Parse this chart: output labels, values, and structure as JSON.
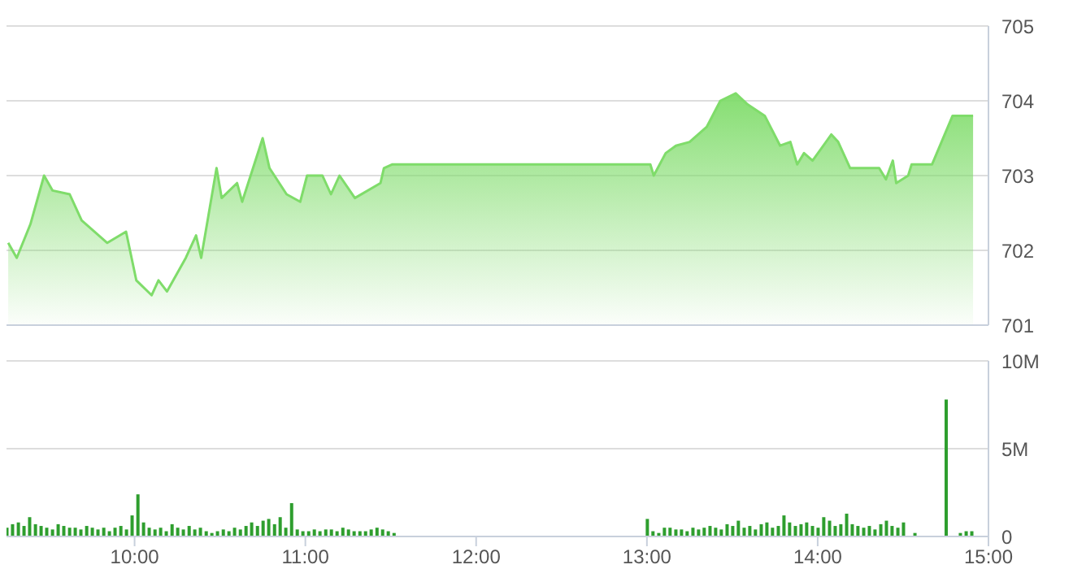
{
  "chart_data": [
    {
      "type": "area",
      "x": [
        9.26,
        9.31,
        9.39,
        9.47,
        9.52,
        9.62,
        9.69,
        9.84,
        9.95,
        10.01,
        10.1,
        10.14,
        10.19,
        10.3,
        10.36,
        10.39,
        10.48,
        10.51,
        10.6,
        10.63,
        10.75,
        10.79,
        10.89,
        10.97,
        11.01,
        11.1,
        11.15,
        11.2,
        11.29,
        11.44,
        11.46,
        11.51,
        13.0,
        13.02,
        13.04,
        13.11,
        13.17,
        13.25,
        13.35,
        13.43,
        13.52,
        13.59,
        13.69,
        13.78,
        13.84,
        13.88,
        13.92,
        13.97,
        14.08,
        14.12,
        14.19,
        14.26,
        14.36,
        14.4,
        14.44,
        14.46,
        14.53,
        14.55,
        14.67,
        14.79,
        14.91
      ],
      "series": [
        {
          "color": "#7fdc6a",
          "values": [
            702.1,
            701.9,
            702.35,
            703.0,
            702.8,
            702.75,
            702.4,
            702.1,
            702.25,
            701.6,
            701.4,
            701.6,
            701.45,
            701.9,
            702.2,
            701.9,
            703.1,
            702.7,
            702.9,
            702.65,
            703.5,
            703.1,
            702.75,
            702.65,
            703.0,
            703.0,
            702.75,
            703.0,
            702.7,
            702.9,
            703.1,
            703.15,
            703.15,
            703.15,
            703.0,
            703.3,
            703.4,
            703.45,
            703.65,
            704.0,
            704.1,
            703.95,
            703.8,
            703.4,
            703.45,
            703.15,
            703.3,
            703.2,
            703.55,
            703.45,
            703.1,
            703.1,
            703.1,
            702.95,
            703.2,
            702.9,
            703.0,
            703.15,
            703.15,
            703.8,
            703.8
          ]
        }
      ],
      "xlim": [
        9.25,
        15
      ],
      "ylim": [
        701,
        705
      ],
      "yticks": [
        701,
        702,
        703,
        704,
        705
      ],
      "grid": "y",
      "tick_labels": "y"
    },
    {
      "type": "bar",
      "x": [
        9.25,
        9.283,
        9.317,
        9.35,
        9.383,
        9.417,
        9.45,
        9.483,
        9.517,
        9.55,
        9.583,
        9.617,
        9.65,
        9.683,
        9.717,
        9.75,
        9.783,
        9.817,
        9.85,
        9.883,
        9.917,
        9.95,
        9.983,
        10.017,
        10.05,
        10.083,
        10.117,
        10.15,
        10.183,
        10.217,
        10.25,
        10.283,
        10.317,
        10.35,
        10.383,
        10.417,
        10.45,
        10.483,
        10.517,
        10.55,
        10.583,
        10.617,
        10.65,
        10.683,
        10.717,
        10.75,
        10.783,
        10.817,
        10.85,
        10.883,
        10.917,
        10.95,
        10.983,
        11.017,
        11.05,
        11.083,
        11.117,
        11.15,
        11.183,
        11.217,
        11.25,
        11.283,
        11.317,
        11.35,
        11.383,
        11.417,
        11.45,
        11.483,
        11.517,
        13.0,
        13.033,
        13.067,
        13.1,
        13.133,
        13.167,
        13.2,
        13.233,
        13.267,
        13.3,
        13.333,
        13.367,
        13.4,
        13.433,
        13.467,
        13.5,
        13.533,
        13.567,
        13.6,
        13.633,
        13.667,
        13.7,
        13.733,
        13.767,
        13.8,
        13.833,
        13.867,
        13.9,
        13.933,
        13.967,
        14.0,
        14.033,
        14.067,
        14.1,
        14.133,
        14.167,
        14.2,
        14.233,
        14.267,
        14.3,
        14.333,
        14.367,
        14.4,
        14.433,
        14.467,
        14.5,
        14.567,
        14.75,
        14.833,
        14.867,
        14.9
      ],
      "series": [
        {
          "color": "#2e9e2e",
          "values": [
            0.5,
            0.7,
            0.8,
            0.6,
            1.1,
            0.7,
            0.6,
            0.5,
            0.4,
            0.7,
            0.6,
            0.5,
            0.5,
            0.4,
            0.6,
            0.5,
            0.4,
            0.5,
            0.3,
            0.5,
            0.6,
            0.4,
            1.2,
            2.4,
            0.8,
            0.5,
            0.4,
            0.5,
            0.3,
            0.7,
            0.5,
            0.4,
            0.6,
            0.4,
            0.5,
            0.3,
            0.2,
            0.3,
            0.4,
            0.3,
            0.5,
            0.4,
            0.6,
            0.8,
            0.6,
            0.9,
            1.0,
            0.7,
            1.1,
            0.5,
            1.9,
            0.4,
            0.3,
            0.3,
            0.4,
            0.3,
            0.4,
            0.4,
            0.3,
            0.5,
            0.4,
            0.3,
            0.3,
            0.3,
            0.4,
            0.5,
            0.4,
            0.3,
            0.2,
            1.0,
            0.3,
            0.2,
            0.5,
            0.5,
            0.4,
            0.4,
            0.3,
            0.5,
            0.4,
            0.5,
            0.6,
            0.5,
            0.4,
            0.7,
            0.6,
            0.9,
            0.5,
            0.6,
            0.4,
            0.7,
            0.8,
            0.5,
            0.6,
            1.2,
            0.8,
            0.6,
            0.7,
            0.8,
            0.6,
            0.5,
            1.1,
            0.9,
            0.6,
            0.7,
            1.3,
            0.7,
            0.6,
            0.5,
            0.6,
            0.4,
            0.7,
            0.9,
            0.6,
            0.5,
            0.8,
            0.2,
            7.8,
            0.2,
            0.3,
            0.3
          ]
        }
      ],
      "xlim": [
        9.25,
        15
      ],
      "xticks": [
        {
          "value": 10,
          "label": "10:00"
        },
        {
          "value": 11,
          "label": "11:00"
        },
        {
          "value": 12,
          "label": "12:00"
        },
        {
          "value": 13,
          "label": "13:00"
        },
        {
          "value": 14,
          "label": "14:00"
        },
        {
          "value": 15,
          "label": "15:00"
        }
      ],
      "ylim": [
        0,
        10
      ],
      "yticks": [
        0,
        {
          "value": 5,
          "label": "5M"
        },
        {
          "value": 10,
          "label": "10M"
        }
      ],
      "grid": "y"
    }
  ]
}
